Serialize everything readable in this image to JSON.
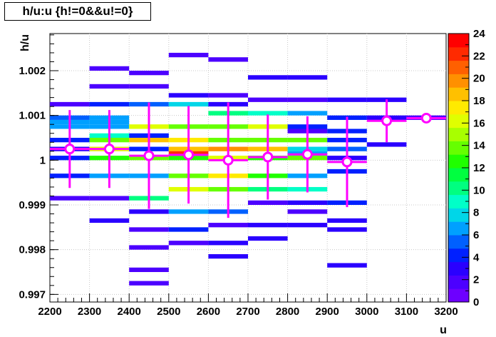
{
  "chart_data": {
    "type": "heatmap",
    "title": "h/u:u {h!=0&&u!=0}",
    "xlabel": "u",
    "ylabel": "h/u",
    "xlim": [
      2200,
      3200
    ],
    "ylim": [
      0.99683,
      1.00283
    ],
    "x_ticks": [
      "2200",
      "2300",
      "2400",
      "2500",
      "2600",
      "2700",
      "2800",
      "2900",
      "3000",
      "3100",
      "3200"
    ],
    "y_ticks": [
      "0.997",
      "0.998",
      "0.999",
      "1",
      "1.001",
      "1.002"
    ],
    "z_range": [
      0,
      24
    ],
    "z_ticks": [
      "0",
      "2",
      "4",
      "6",
      "8",
      "10",
      "12",
      "14",
      "16",
      "18",
      "20",
      "22",
      "24"
    ],
    "grid": true,
    "x_bin_width": 100,
    "y_bin_height": 0.0001,
    "cells": [
      [
        2200,
        1.0012,
        2
      ],
      [
        2200,
        1.0009,
        5
      ],
      [
        2200,
        1.0008,
        6
      ],
      [
        2200,
        1.0007,
        6
      ],
      [
        2200,
        1.0004,
        4
      ],
      [
        2200,
        1.0002,
        3
      ],
      [
        2200,
        1.0,
        4
      ],
      [
        2200,
        0.9996,
        4
      ],
      [
        2200,
        0.9991,
        2
      ],
      [
        2300,
        1.002,
        2
      ],
      [
        2300,
        1.0016,
        2
      ],
      [
        2300,
        1.0012,
        4
      ],
      [
        2300,
        1.0009,
        6
      ],
      [
        2300,
        1.0008,
        6
      ],
      [
        2300,
        1.0007,
        7
      ],
      [
        2300,
        1.0005,
        9
      ],
      [
        2300,
        1.0004,
        14
      ],
      [
        2300,
        1.0002,
        16
      ],
      [
        2300,
        1.0,
        13
      ],
      [
        2300,
        0.9996,
        7
      ],
      [
        2300,
        0.9991,
        2
      ],
      [
        2300,
        0.9986,
        3
      ],
      [
        2400,
        1.0019,
        2
      ],
      [
        2400,
        1.0016,
        2
      ],
      [
        2400,
        1.0012,
        5
      ],
      [
        2400,
        1.0007,
        16
      ],
      [
        2400,
        1.0005,
        4
      ],
      [
        2400,
        1.0004,
        18
      ],
      [
        2400,
        1.0002,
        4
      ],
      [
        2400,
        1.0,
        14
      ],
      [
        2400,
        0.9996,
        7
      ],
      [
        2400,
        0.9991,
        10
      ],
      [
        2400,
        0.9988,
        3
      ],
      [
        2400,
        0.9984,
        2
      ],
      [
        2400,
        0.998,
        2
      ],
      [
        2400,
        0.9975,
        2
      ],
      [
        2400,
        0.9972,
        2
      ],
      [
        2500,
        1.0023,
        2
      ],
      [
        2500,
        1.0014,
        3
      ],
      [
        2500,
        1.0012,
        8
      ],
      [
        2500,
        1.0007,
        14
      ],
      [
        2500,
        1.0004,
        17
      ],
      [
        2500,
        1.0002,
        18
      ],
      [
        2500,
        1.0001,
        22
      ],
      [
        2500,
        1.0,
        12
      ],
      [
        2500,
        0.9996,
        14
      ],
      [
        2500,
        0.9993,
        16
      ],
      [
        2500,
        0.9988,
        6
      ],
      [
        2500,
        0.9984,
        4
      ],
      [
        2500,
        0.9981,
        2
      ],
      [
        2600,
        1.0022,
        2
      ],
      [
        2600,
        1.0014,
        2
      ],
      [
        2600,
        1.0012,
        3
      ],
      [
        2600,
        1.001,
        10
      ],
      [
        2600,
        1.0007,
        14
      ],
      [
        2600,
        1.0004,
        14
      ],
      [
        2600,
        1.0002,
        20
      ],
      [
        2600,
        1.0,
        16
      ],
      [
        2600,
        0.9996,
        17
      ],
      [
        2600,
        0.9993,
        14
      ],
      [
        2600,
        0.9988,
        5
      ],
      [
        2600,
        0.9985,
        2
      ],
      [
        2600,
        0.9981,
        3
      ],
      [
        2600,
        0.9978,
        3
      ],
      [
        2700,
        1.0018,
        3
      ],
      [
        2700,
        1.0013,
        2
      ],
      [
        2700,
        1.001,
        9
      ],
      [
        2700,
        1.0007,
        16
      ],
      [
        2700,
        1.0004,
        14
      ],
      [
        2700,
        1.0002,
        18
      ],
      [
        2700,
        1.0,
        13
      ],
      [
        2700,
        0.9996,
        13
      ],
      [
        2700,
        0.9993,
        10
      ],
      [
        2700,
        0.999,
        2
      ],
      [
        2700,
        0.9985,
        3
      ],
      [
        2700,
        0.9982,
        3
      ],
      [
        2800,
        1.0018,
        3
      ],
      [
        2800,
        1.0013,
        2
      ],
      [
        2800,
        1.001,
        7
      ],
      [
        2800,
        1.0007,
        4
      ],
      [
        2800,
        1.0006,
        2
      ],
      [
        2800,
        1.0004,
        14
      ],
      [
        2800,
        1.0002,
        8
      ],
      [
        2800,
        1.0001,
        7
      ],
      [
        2800,
        1.0,
        14
      ],
      [
        2800,
        0.9996,
        6
      ],
      [
        2800,
        0.9993,
        9
      ],
      [
        2800,
        0.999,
        3
      ],
      [
        2800,
        0.9988,
        2
      ],
      [
        2800,
        0.9985,
        3
      ],
      [
        2900,
        1.0013,
        3
      ],
      [
        2900,
        1.0009,
        4
      ],
      [
        2900,
        1.0006,
        4
      ],
      [
        2900,
        1.0004,
        4
      ],
      [
        2900,
        1.0002,
        5
      ],
      [
        2900,
        1.0,
        3
      ],
      [
        2900,
        0.9997,
        4
      ],
      [
        2900,
        0.999,
        4
      ],
      [
        2900,
        0.9986,
        3
      ],
      [
        2900,
        0.9984,
        3
      ],
      [
        2900,
        0.9976,
        3
      ],
      [
        3000,
        1.0013,
        3
      ],
      [
        3000,
        1.0009,
        3
      ],
      [
        3000,
        1.0003,
        3
      ],
      [
        3100,
        1.0009,
        2
      ]
    ],
    "series": [
      {
        "name": "profile",
        "x": [
          2250,
          2350,
          2450,
          2550,
          2650,
          2750,
          2850,
          2950,
          3050,
          3150
        ],
        "y": [
          1.00025,
          1.00025,
          1.0001,
          1.00012,
          1.0,
          1.00007,
          1.00013,
          0.99996,
          1.00088,
          1.00094
        ],
        "err": [
          0.00087,
          0.00087,
          0.00119,
          0.00109,
          0.00129,
          0.00095,
          0.00085,
          0.00101,
          0.00048,
          0.0001
        ]
      }
    ]
  }
}
